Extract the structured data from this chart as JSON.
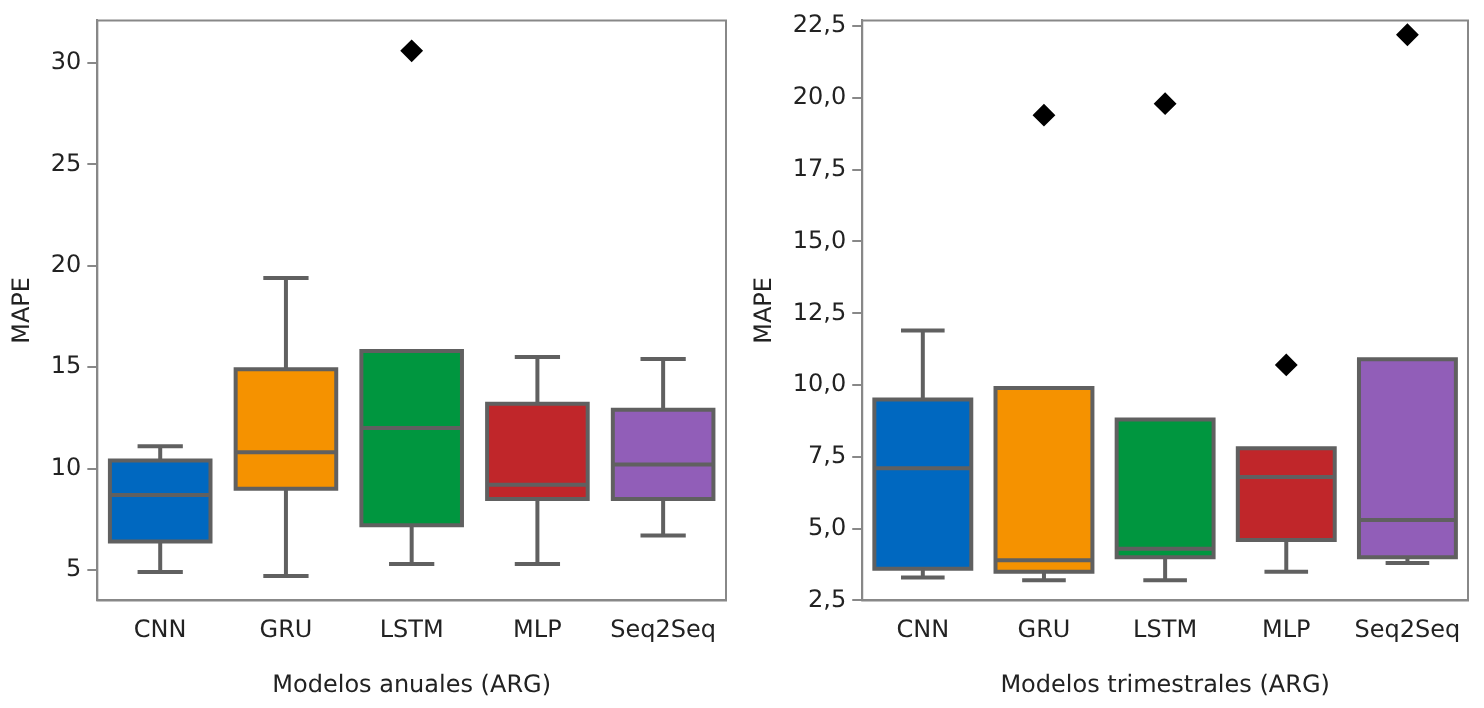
{
  "chart_data": [
    {
      "type": "box",
      "xlabel": "Modelos anuales (ARG)",
      "ylabel": "MAPE",
      "categories": [
        "CNN",
        "GRU",
        "LSTM",
        "MLP",
        "Seq2Seq"
      ],
      "colors": [
        "#0068c0",
        "#f59200",
        "#00963f",
        "#c0262a",
        "#915eb8"
      ],
      "boxes": [
        {
          "low": 4.9,
          "q1": 6.4,
          "median": 8.7,
          "q3": 10.4,
          "high": 11.1
        },
        {
          "low": 4.7,
          "q1": 9.0,
          "median": 10.8,
          "q3": 14.9,
          "high": 19.4
        },
        {
          "low": 5.3,
          "q1": 7.2,
          "median": 12.0,
          "q3": 15.8,
          "high": 15.8,
          "outliers": [
            30.6
          ]
        },
        {
          "low": 5.3,
          "q1": 8.5,
          "median": 9.2,
          "q3": 13.2,
          "high": 15.5
        },
        {
          "low": 6.7,
          "q1": 8.5,
          "median": 10.2,
          "q3": 12.9,
          "high": 15.4
        }
      ],
      "ylim": [
        3.5,
        32.1
      ],
      "yticks": [
        5,
        10,
        15,
        20,
        25,
        30
      ],
      "grid": false,
      "legend": false
    },
    {
      "type": "box",
      "xlabel": "Modelos trimestrales (ARG)",
      "ylabel": "MAPE",
      "categories": [
        "CNN",
        "GRU",
        "LSTM",
        "MLP",
        "Seq2Seq"
      ],
      "colors": [
        "#0068c0",
        "#f59200",
        "#00963f",
        "#c0262a",
        "#915eb8"
      ],
      "boxes": [
        {
          "low": 3.3,
          "q1": 3.6,
          "median": 7.1,
          "q3": 9.5,
          "high": 11.9
        },
        {
          "low": 3.2,
          "q1": 3.5,
          "median": 3.9,
          "q3": 9.9,
          "high": 9.9,
          "outliers": [
            19.4
          ]
        },
        {
          "low": 3.2,
          "q1": 4.0,
          "median": 4.3,
          "q3": 8.8,
          "high": 8.8,
          "outliers": [
            19.8
          ]
        },
        {
          "low": 3.5,
          "q1": 4.6,
          "median": 6.8,
          "q3": 7.8,
          "high": 7.8,
          "outliers": [
            10.7
          ]
        },
        {
          "low": 3.8,
          "q1": 4.0,
          "median": 5.3,
          "q3": 10.9,
          "high": 10.9,
          "outliers": [
            22.2
          ]
        }
      ],
      "ylim": [
        2.5,
        22.7
      ],
      "yticks": [
        {
          "value": 2.5,
          "label": "2,5"
        },
        {
          "value": 5,
          "label": "5,0"
        },
        {
          "value": 7.5,
          "label": "7,5"
        },
        {
          "value": 10,
          "label": "10,0"
        },
        {
          "value": 12.5,
          "label": "12,5"
        },
        {
          "value": 15,
          "label": "15,0"
        },
        {
          "value": 17.5,
          "label": "17,5"
        },
        {
          "value": 20,
          "label": "20,0"
        },
        {
          "value": 22.5,
          "label": "22,5"
        }
      ],
      "grid": false,
      "legend": false
    }
  ]
}
